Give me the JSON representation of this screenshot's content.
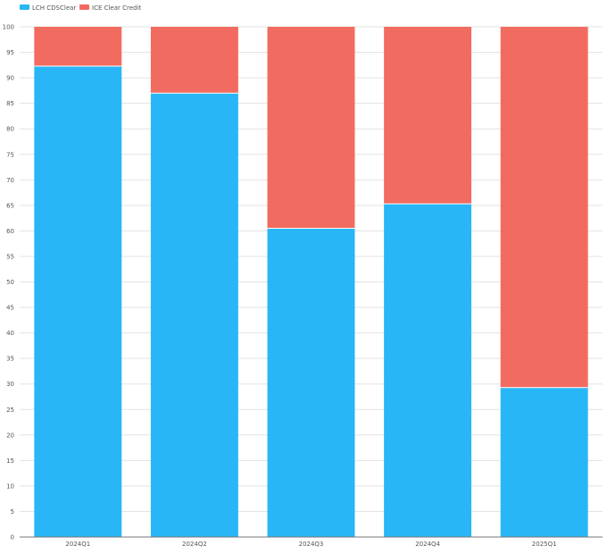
{
  "chart_data": {
    "type": "bar",
    "stacked": true,
    "categories": [
      "2024Q1",
      "2024Q2",
      "2024Q3",
      "2024Q4",
      "2025Q1"
    ],
    "series": [
      {
        "name": "LCH CDSClear",
        "color": "#29b6f6",
        "values": [
          92.3,
          87.0,
          60.5,
          65.3,
          29.3
        ]
      },
      {
        "name": "ICE Clear Credit",
        "color": "#f26b60",
        "values": [
          7.7,
          13.0,
          39.5,
          34.7,
          70.7
        ]
      }
    ],
    "ylim": [
      0,
      100
    ],
    "yticks": [
      0,
      5,
      10,
      15,
      20,
      25,
      30,
      35,
      40,
      45,
      50,
      55,
      60,
      65,
      70,
      75,
      80,
      85,
      90,
      95,
      100
    ],
    "grid": true,
    "legend_position": "top-left",
    "title": "",
    "xlabel": "",
    "ylabel": ""
  }
}
